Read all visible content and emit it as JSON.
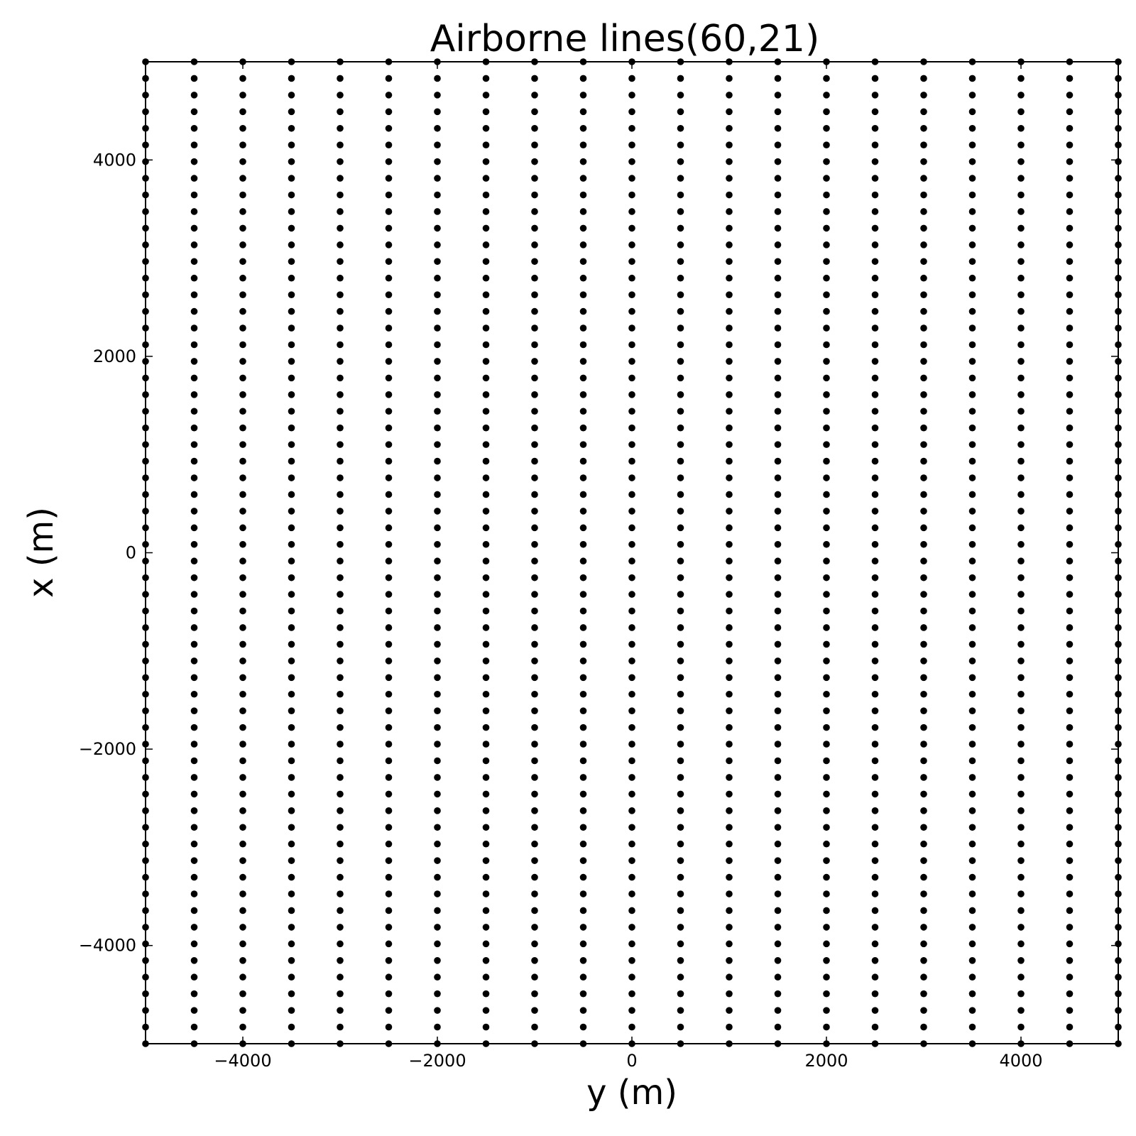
{
  "chart_data": {
    "type": "scatter",
    "title": "Airborne lines(60,21)",
    "xlabel": "y (m)",
    "ylabel": "x (m)",
    "xlim": [
      -5000,
      5000
    ],
    "ylim": [
      -5000,
      5000
    ],
    "grid": false,
    "marker_color": "#000000",
    "x_ticks": [
      -4000,
      -2000,
      0,
      2000,
      4000
    ],
    "y_ticks": [
      -4000,
      -2000,
      0,
      2000,
      4000
    ],
    "x_tick_labels": [
      "−4000",
      "−2000",
      "0",
      "2000",
      "4000"
    ],
    "y_tick_labels": [
      "−4000",
      "−2000",
      "0",
      "2000",
      "4000"
    ],
    "series": [
      {
        "points": {
          "grid": true,
          "y_lines": {
            "start": -5000,
            "stop": 5000,
            "count": 21
          },
          "x_samples": {
            "start": -5000,
            "stop": 5000,
            "count": 60
          }
        }
      }
    ]
  }
}
